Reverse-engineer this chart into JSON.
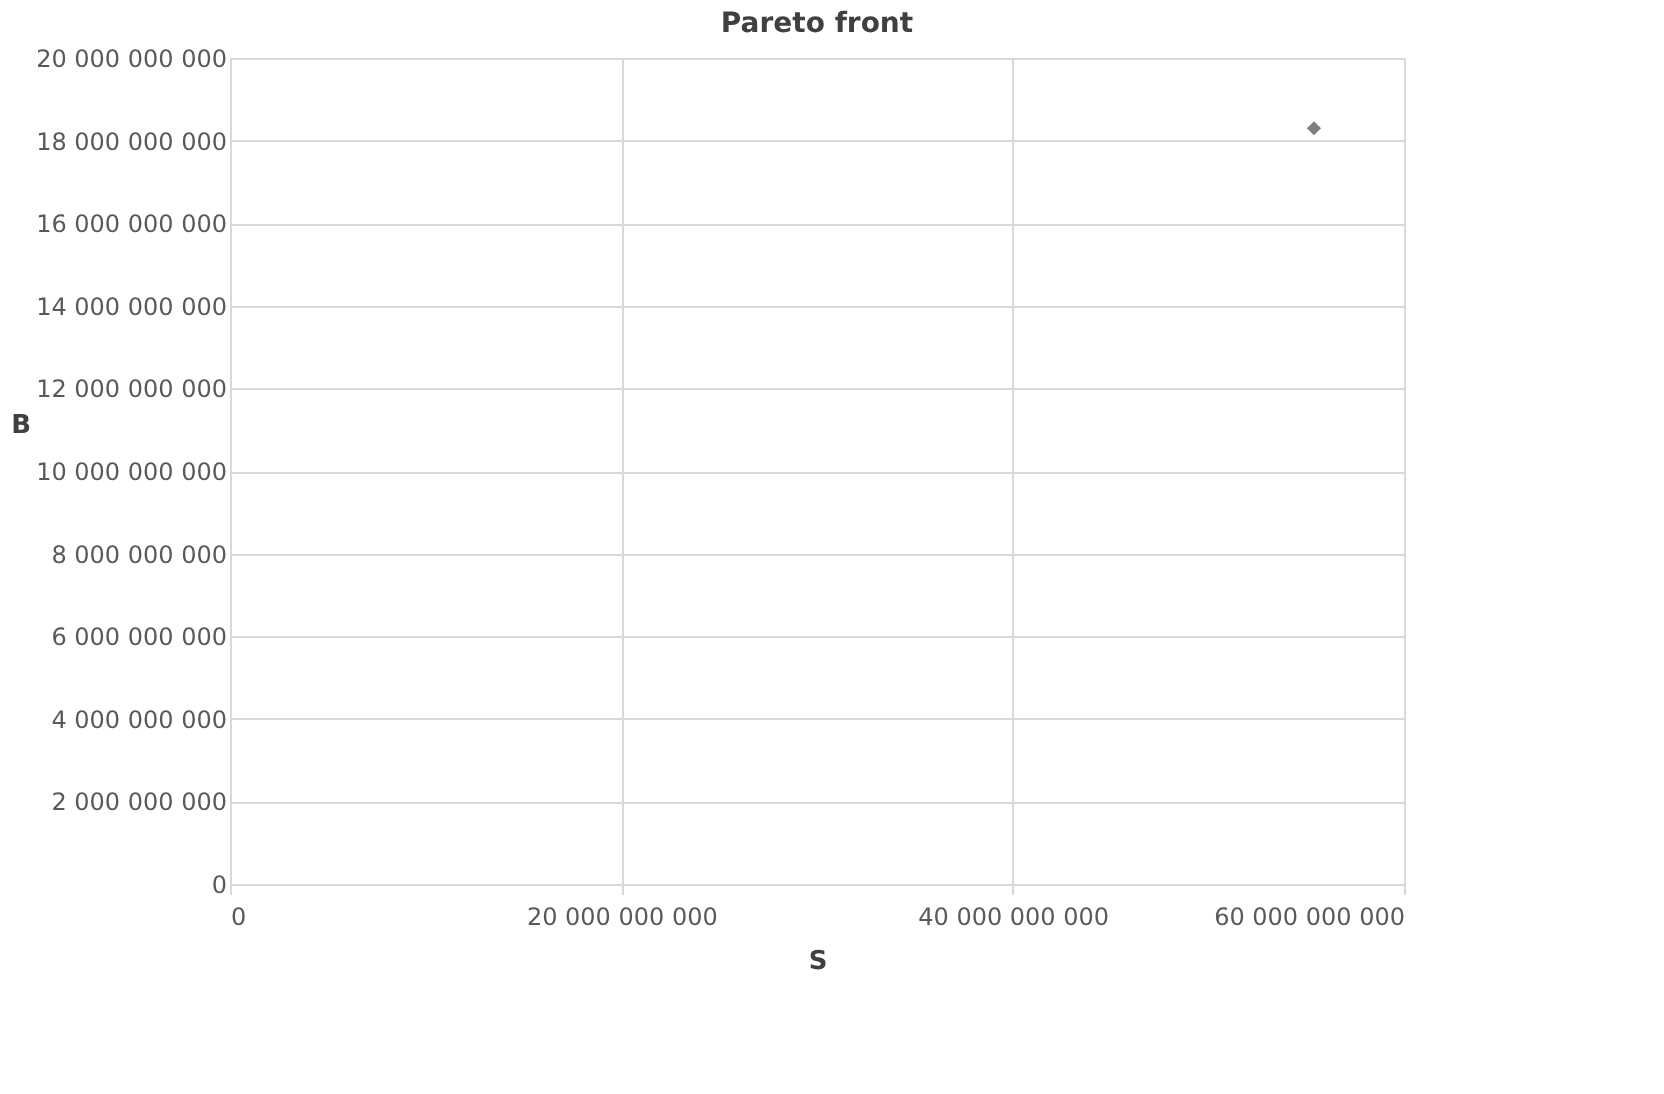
{
  "chart_data": {
    "type": "scatter",
    "title": "Pareto front",
    "xlabel": "S",
    "ylabel": "B",
    "x": [
      55400000000
    ],
    "series": [
      {
        "color": "#7f7f7f",
        "values": [
          18300000000
        ]
      }
    ],
    "xlim": [
      0,
      60000000000
    ],
    "xticks": [
      {
        "value": 0,
        "label": "0"
      },
      {
        "value": 20000000000,
        "label": "20 000 000 000"
      },
      {
        "value": 40000000000,
        "label": "40 000 000 000"
      },
      {
        "value": 60000000000,
        "label": "60 000 000 000"
      }
    ],
    "ylim": [
      0,
      20000000000
    ],
    "yticks": [
      {
        "value": 0,
        "label": "0"
      },
      {
        "value": 2000000000,
        "label": "2 000 000 000"
      },
      {
        "value": 4000000000,
        "label": "4 000 000 000"
      },
      {
        "value": 6000000000,
        "label": "6 000 000 000"
      },
      {
        "value": 8000000000,
        "label": "8 000 000 000"
      },
      {
        "value": 10000000000,
        "label": "10 000 000 000"
      },
      {
        "value": 12000000000,
        "label": "12 000 000 000"
      },
      {
        "value": 14000000000,
        "label": "14 000 000 000"
      },
      {
        "value": 16000000000,
        "label": "16 000 000 000"
      },
      {
        "value": 18000000000,
        "label": "18 000 000 000"
      },
      {
        "value": 20000000000,
        "label": "20 000 000 000"
      }
    ],
    "grid": true,
    "marker": "diamond",
    "legend": false
  }
}
